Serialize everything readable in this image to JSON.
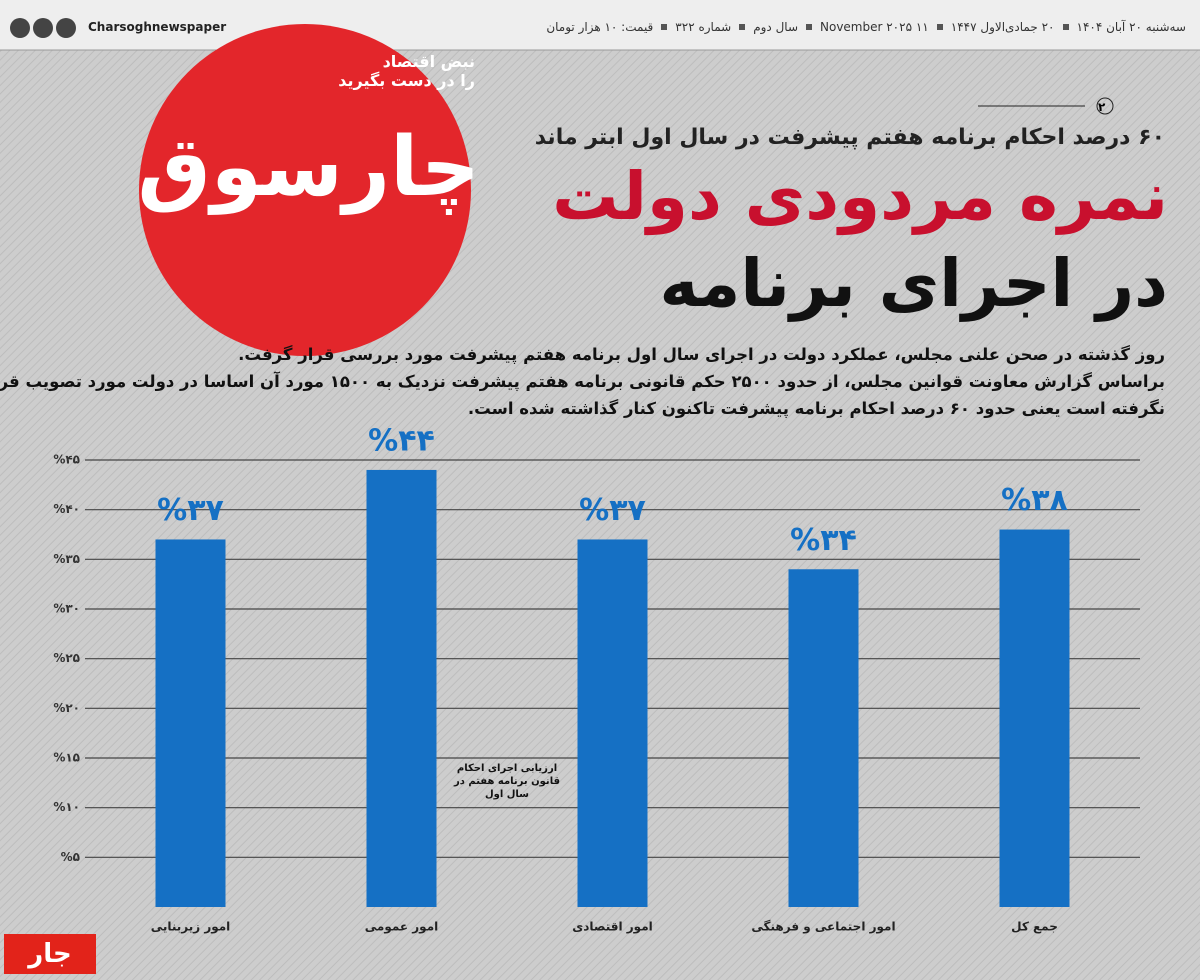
{
  "header": {
    "social_handle": "Charsoghnewspaper",
    "date_items": [
      "سه‌شنبه ۲۰ آبان ۱۴۰۴",
      "۲۰ جمادی‌الاول ۱۴۴۷",
      "۱۱ November ۲۰۲۵",
      "سال دوم",
      "شماره ۳۲۲",
      "قیمت: ۱۰ هزار تومان"
    ],
    "page_number": "۲"
  },
  "masthead": {
    "logo": "چارسوق",
    "slogan_lines": [
      "نبض اقتصاد",
      "را در دست بگیرید"
    ]
  },
  "article": {
    "kicker": "۶۰ درصد احکام برنامه هفتم پیشرفت در سال اول ابتر ماند",
    "headline_lines": [
      "نمره مردودی دولت",
      "در اجرای برنامه"
    ],
    "body_lines": [
      "روز گذشته در صحن علنی مجلس، عملکرد دولت در اجرای سال اول برنامه هفتم پیشرفت مورد بررسی قرار گرفت.",
      "براساس گزارش معاونت قوانین مجلس، از حدود ۲۵۰۰ حکم قانونی برنامه هفتم پیشرفت نزدیک به ۱۵۰۰ مورد آن اساسا در دولت مورد تصویب قرار",
      "نگرفته است یعنی حدود ۶۰ درصد احکام برنامه پیشرفت تاکنون کنار گذاشته شده است."
    ]
  },
  "chart_data": {
    "type": "bar",
    "categories": [
      "امور زیربنایی",
      "امور عمومی",
      "امور اقتصادی",
      "امور اجتماعی و فرهنگی",
      "جمع کل"
    ],
    "values": [
      37,
      44,
      37,
      34,
      38
    ],
    "value_labels": [
      "%۳۷",
      "%۴۴",
      "%۳۷",
      "%۳۴",
      "%۳۸"
    ],
    "color": "#1570c4",
    "ylim": [
      0,
      45
    ],
    "yticks": [
      {
        "value": 5,
        "label": "%۵"
      },
      {
        "value": 10,
        "label": "%۱۰"
      },
      {
        "value": 15,
        "label": "%۱۵"
      },
      {
        "value": 20,
        "label": "%۲۰"
      },
      {
        "value": 25,
        "label": "%۲۵"
      },
      {
        "value": 30,
        "label": "%۳۰"
      },
      {
        "value": 35,
        "label": "%۳۵"
      },
      {
        "value": 40,
        "label": "%۴۰"
      },
      {
        "value": 45,
        "label": "%۴۵"
      }
    ],
    "grid": true,
    "annotation": "ارزیابی اجرای احکام قانون برنامه هفتم در سال اول"
  },
  "footer": {
    "watermark": "جار"
  }
}
